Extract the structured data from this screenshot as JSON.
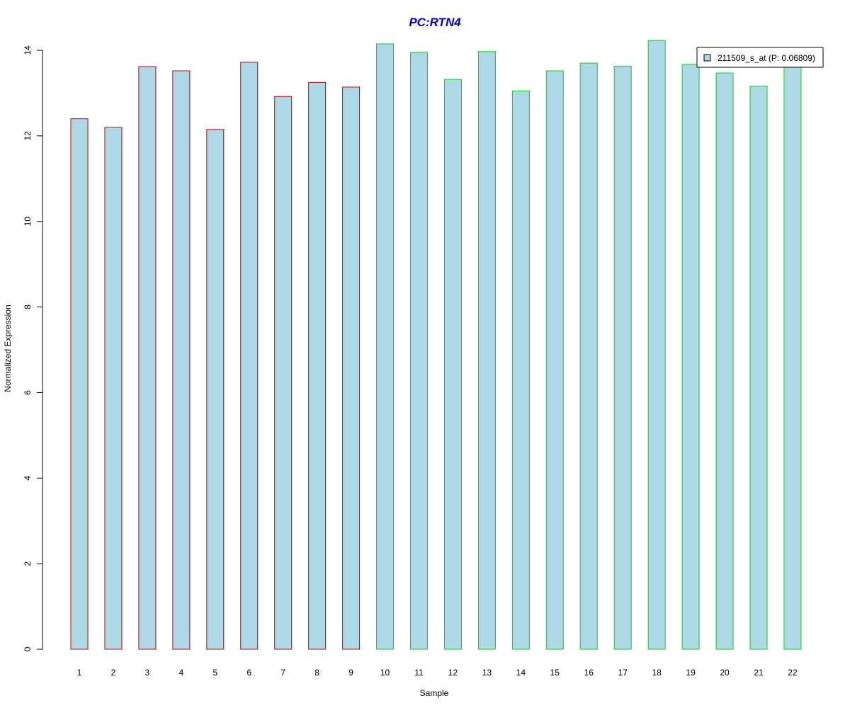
{
  "chart_data": {
    "type": "bar",
    "title": "PC:RTN4",
    "title_color": "#0000cc",
    "xlabel": "Sample",
    "ylabel": "Normalized Expression",
    "ylim": [
      0,
      14
    ],
    "y_ticks": [
      0,
      2,
      4,
      6,
      8,
      10,
      12,
      14
    ],
    "categories": [
      "1",
      "2",
      "3",
      "4",
      "5",
      "6",
      "7",
      "8",
      "9",
      "10",
      "11",
      "12",
      "13",
      "14",
      "15",
      "16",
      "17",
      "18",
      "19",
      "20",
      "21",
      "22"
    ],
    "series": [
      {
        "name": "211509_s_at (P: 0.06809)",
        "fill_color": "#add8e6",
        "values": [
          12.4,
          12.2,
          13.62,
          13.52,
          12.15,
          13.72,
          12.92,
          13.25,
          13.14,
          14.15,
          13.95,
          13.32,
          13.97,
          13.05,
          13.52,
          13.7,
          13.63,
          14.23,
          13.67,
          13.47,
          13.16,
          13.72
        ]
      }
    ],
    "groups": [
      {
        "border_color": "#dd0000",
        "members": [
          "1",
          "2",
          "3",
          "4",
          "5",
          "6",
          "7",
          "8",
          "9"
        ]
      },
      {
        "border_color": "#00dd00",
        "members": [
          "10",
          "11",
          "12",
          "13",
          "14",
          "15",
          "16",
          "17",
          "18",
          "19",
          "20",
          "21",
          "22"
        ]
      }
    ],
    "legend": {
      "position": "top-right",
      "entries": [
        "211509_s_at (P: 0.06809)"
      ]
    },
    "grid": false
  }
}
